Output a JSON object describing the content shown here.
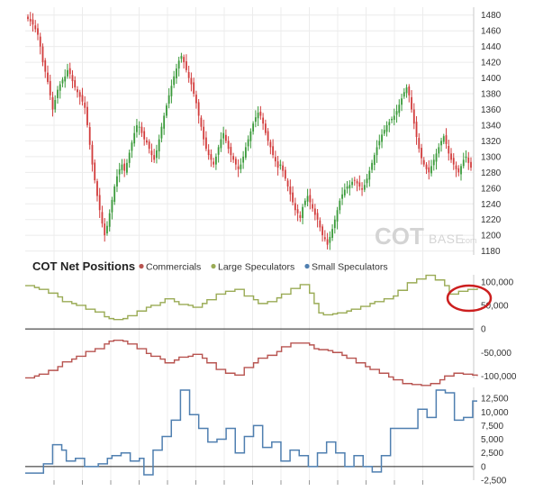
{
  "chart_data": [
    {
      "type": "candlestick",
      "title": "",
      "watermark": {
        "main": "COT",
        "sub": "BASE",
        "suffix": ".com"
      },
      "y_ticks": [
        "1480",
        "1460",
        "1440",
        "1420",
        "1400",
        "1380",
        "1360",
        "1340",
        "1320",
        "1300",
        "1280",
        "1260",
        "1240",
        "1220",
        "1200",
        "1180"
      ],
      "ylim": [
        1175,
        1490
      ],
      "grid": true,
      "up_color": "#3a9a3a",
      "down_color": "#d23c3c",
      "close_series": [
        1475,
        1472,
        1468,
        1462,
        1455,
        1440,
        1420,
        1408,
        1395,
        1378,
        1360,
        1372,
        1385,
        1392,
        1398,
        1402,
        1410,
        1405,
        1396,
        1388,
        1382,
        1376,
        1370,
        1362,
        1340,
        1315,
        1290,
        1270,
        1250,
        1232,
        1215,
        1200,
        1212,
        1228,
        1245,
        1262,
        1275,
        1284,
        1290,
        1282,
        1292,
        1305,
        1318,
        1330,
        1340,
        1338,
        1330,
        1322,
        1318,
        1310,
        1302,
        1296,
        1308,
        1322,
        1338,
        1352,
        1365,
        1378,
        1390,
        1402,
        1412,
        1422,
        1428,
        1420,
        1410,
        1400,
        1392,
        1380,
        1368,
        1352,
        1338,
        1322,
        1310,
        1302,
        1296,
        1290,
        1300,
        1312,
        1322,
        1330,
        1320,
        1310,
        1302,
        1296,
        1290,
        1284,
        1290,
        1300,
        1312,
        1322,
        1332,
        1342,
        1350,
        1356,
        1352,
        1342,
        1330,
        1320,
        1312,
        1302,
        1294,
        1286,
        1290,
        1282,
        1272,
        1262,
        1252,
        1242,
        1232,
        1228,
        1222,
        1236,
        1244,
        1250,
        1242,
        1234,
        1226,
        1220,
        1210,
        1200,
        1195,
        1188,
        1198,
        1208,
        1220,
        1232,
        1244,
        1252,
        1258,
        1262,
        1264,
        1268,
        1270,
        1266,
        1262,
        1258,
        1264,
        1272,
        1282,
        1292,
        1302,
        1312,
        1320,
        1328,
        1334,
        1340,
        1344,
        1348,
        1352,
        1358,
        1366,
        1374,
        1382,
        1388,
        1378,
        1360,
        1342,
        1325,
        1310,
        1298,
        1290,
        1284,
        1280,
        1288,
        1296,
        1304,
        1312,
        1320,
        1326,
        1316,
        1304,
        1296,
        1290,
        1284,
        1280,
        1288,
        1296,
        1300,
        1292,
        1286
      ]
    },
    {
      "type": "line",
      "title": "COT Net Positions",
      "legend_placement": "top-left",
      "series": [
        {
          "name": "Commercials",
          "color": "#b85450"
        },
        {
          "name": "Large Speculators",
          "color": "#9aab55"
        },
        {
          "name": "Small Speculators",
          "color": "#4f7fb0"
        }
      ],
      "y_ticks": [
        "100,000",
        "50,000",
        "0",
        "-50,000",
        "-100,000"
      ],
      "ylim": [
        -105000,
        115000
      ],
      "zero_line": true,
      "large_speculators_values": [
        92000,
        92000,
        88000,
        84000,
        84000,
        76000,
        76000,
        68000,
        58000,
        58000,
        54000,
        50000,
        50000,
        42000,
        42000,
        36000,
        36000,
        26000,
        22000,
        20000,
        20000,
        22000,
        28000,
        28000,
        38000,
        38000,
        46000,
        50000,
        50000,
        56000,
        64000,
        64000,
        58000,
        52000,
        52000,
        50000,
        46000,
        46000,
        54000,
        62000,
        62000,
        74000,
        74000,
        80000,
        80000,
        84000,
        84000,
        70000,
        70000,
        62000,
        54000,
        54000,
        58000,
        58000,
        66000,
        74000,
        74000,
        86000,
        86000,
        94000,
        94000,
        76000,
        54000,
        34000,
        30000,
        30000,
        32000,
        34000,
        34000,
        38000,
        42000,
        42000,
        48000,
        48000,
        54000,
        58000,
        58000,
        64000,
        64000,
        70000,
        82000,
        82000,
        98000,
        98000,
        106000,
        106000,
        114000,
        114000,
        104000,
        104000,
        92000,
        74000,
        74000,
        80000,
        80000,
        84000,
        84000,
        86000
      ],
      "commercials_values": [
        -104000,
        -104000,
        -100000,
        -96000,
        -96000,
        -88000,
        -88000,
        -80000,
        -70000,
        -70000,
        -64000,
        -58000,
        -58000,
        -48000,
        -48000,
        -42000,
        -42000,
        -32000,
        -26000,
        -24000,
        -24000,
        -26000,
        -32000,
        -32000,
        -42000,
        -42000,
        -52000,
        -58000,
        -58000,
        -64000,
        -72000,
        -72000,
        -66000,
        -60000,
        -60000,
        -58000,
        -54000,
        -54000,
        -62000,
        -72000,
        -72000,
        -86000,
        -86000,
        -94000,
        -94000,
        -98000,
        -98000,
        -82000,
        -82000,
        -72000,
        -62000,
        -62000,
        -56000,
        -56000,
        -48000,
        -38000,
        -38000,
        -30000,
        -30000,
        -30000,
        -30000,
        -34000,
        -42000,
        -44000,
        -44000,
        -46000,
        -50000,
        -50000,
        -56000,
        -62000,
        -62000,
        -72000,
        -72000,
        -80000,
        -86000,
        -86000,
        -94000,
        -94000,
        -102000,
        -108000,
        -108000,
        -116000,
        -116000,
        -118000,
        -118000,
        -120000,
        -120000,
        -116000,
        -116000,
        -108000,
        -100000,
        -100000,
        -94000,
        -94000,
        -96000,
        -96000,
        -98000,
        -100000
      ]
    },
    {
      "type": "line",
      "series_name": "Small Speculators",
      "y_ticks": [
        "12,500",
        "10,000",
        "7,500",
        "5,000",
        "2,500",
        "0",
        "-2,500"
      ],
      "ylim": [
        -2500,
        14500
      ],
      "zero_line": true,
      "values": [
        -1200,
        -1200,
        -1200,
        -1200,
        500,
        500,
        4000,
        4000,
        3000,
        1000,
        1000,
        1500,
        1500,
        0,
        0,
        0,
        500,
        500,
        1500,
        2000,
        2000,
        2500,
        2500,
        1000,
        1000,
        1500,
        -1500,
        -1500,
        3000,
        3000,
        5500,
        5500,
        8500,
        8500,
        14000,
        14000,
        9500,
        9500,
        7000,
        7000,
        4500,
        4500,
        5000,
        5000,
        7000,
        7000,
        2500,
        2500,
        5500,
        5500,
        7500,
        7500,
        3500,
        3500,
        4500,
        4500,
        1000,
        1000,
        3000,
        3000,
        2000,
        2000,
        0,
        0,
        2500,
        2500,
        4500,
        4500,
        2500,
        2500,
        0,
        0,
        2000,
        2000,
        0,
        0,
        -1000,
        -1000,
        2000,
        2000,
        7000,
        7000,
        7000,
        7000,
        7000,
        7000,
        10500,
        10500,
        9000,
        9000,
        14000,
        14000,
        13500,
        13500,
        8500,
        8500,
        9000,
        9000,
        12000,
        12000
      ]
    }
  ]
}
